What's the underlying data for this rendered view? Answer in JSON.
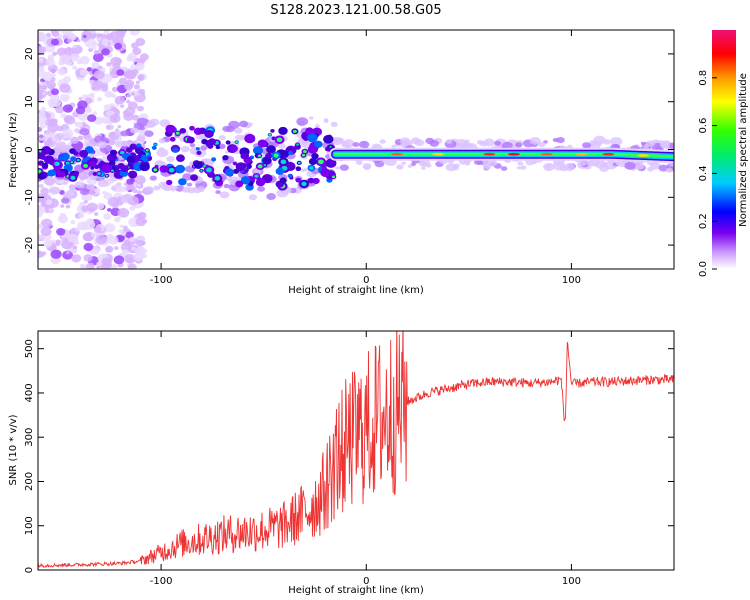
{
  "figure": {
    "title": "S128.2023.121.00.58.G05"
  },
  "chart_data": [
    {
      "type": "heatmap",
      "name": "spectrogram",
      "xlabel": "Height of straight line (km)",
      "ylabel": "Frequency (Hz)",
      "xlim": [
        -160,
        150
      ],
      "ylim": [
        -25,
        25
      ],
      "x_ticks": [
        -100,
        0,
        100
      ],
      "y_ticks": [
        -20,
        -10,
        0,
        10,
        20
      ],
      "colorbar": {
        "label": "Normalized spectral amplitude",
        "range": [
          0,
          1
        ],
        "ticks": [
          0.0,
          0.2,
          0.4,
          0.6,
          0.8
        ]
      },
      "signal_ridge": {
        "x": [
          -160,
          -140,
          -120,
          -100,
          -80,
          -60,
          -40,
          -20,
          0,
          20,
          40,
          60,
          80,
          100,
          120,
          150
        ],
        "y": [
          -3,
          -3,
          -3,
          -1,
          -1,
          -2,
          -2,
          -1,
          -1,
          -1,
          -1,
          -1,
          -1,
          -1,
          -1,
          -1.5
        ]
      }
    },
    {
      "type": "line",
      "name": "snr",
      "xlabel": "Height of straight line (km)",
      "ylabel": "SNR (10 * v/v)",
      "xlim": [
        -160,
        150
      ],
      "ylim": [
        0,
        540
      ],
      "x_ticks": [
        -100,
        0,
        100
      ],
      "y_ticks": [
        0,
        100,
        200,
        300,
        400,
        500
      ],
      "series": [
        {
          "name": "SNR",
          "color": "#ee3333",
          "x": [
            -160,
            -140,
            -120,
            -110,
            -100,
            -90,
            -80,
            -70,
            -60,
            -50,
            -40,
            -30,
            -25,
            -20,
            -15,
            -10,
            -5,
            0,
            5,
            10,
            15,
            20,
            25,
            30,
            40,
            50,
            60,
            70,
            80,
            90,
            95,
            97,
            98,
            100,
            110,
            120,
            130,
            140,
            150
          ],
          "y": [
            10,
            12,
            15,
            20,
            40,
            60,
            70,
            80,
            85,
            90,
            100,
            130,
            150,
            180,
            250,
            280,
            300,
            320,
            340,
            350,
            370,
            380,
            390,
            400,
            410,
            420,
            425,
            425,
            422,
            425,
            430,
            320,
            520,
            420,
            425,
            425,
            428,
            430,
            430
          ]
        }
      ]
    }
  ]
}
